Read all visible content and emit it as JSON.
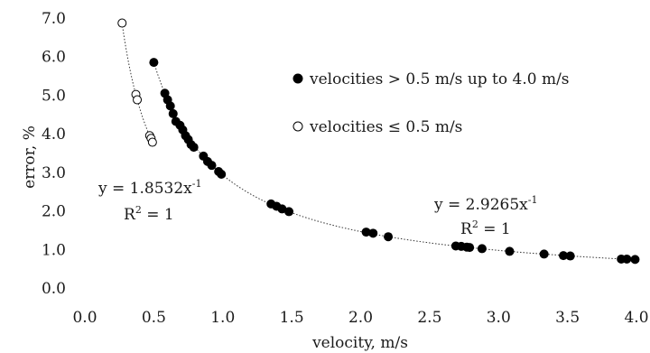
{
  "chart_data": {
    "type": "scatter",
    "xlabel": "velocity, m/s",
    "ylabel": "error, %",
    "xlim": [
      0,
      4.0
    ],
    "ylim": [
      0,
      7.0
    ],
    "xticks": [
      "0.0",
      "0.5",
      "1.0",
      "1.5",
      "2.0",
      "2.5",
      "3.0",
      "3.5",
      "4.0"
    ],
    "yticks": [
      "0.0",
      "1.0",
      "2.0",
      "3.0",
      "4.0",
      "5.0",
      "6.0",
      "7.0"
    ],
    "grid": false,
    "legend_position": "top-right",
    "series": [
      {
        "name": "velocities > 0.5 m/s up to 4.0 m/s",
        "marker": "filled-circle",
        "color": "#000000",
        "x": [
          0.5,
          0.58,
          0.6,
          0.62,
          0.64,
          0.66,
          0.69,
          0.71,
          0.73,
          0.75,
          0.77,
          0.79,
          0.86,
          0.89,
          0.92,
          0.97,
          0.99,
          1.35,
          1.39,
          1.43,
          1.48,
          2.04,
          2.09,
          2.2,
          2.69,
          2.73,
          2.77,
          2.79,
          2.88,
          3.08,
          3.33,
          3.47,
          3.52,
          3.89,
          3.93,
          3.99
        ],
        "y": [
          5.85,
          5.05,
          4.88,
          4.72,
          4.52,
          4.32,
          4.22,
          4.1,
          3.95,
          3.85,
          3.72,
          3.65,
          3.42,
          3.28,
          3.18,
          3.02,
          2.95,
          2.18,
          2.12,
          2.05,
          1.98,
          1.45,
          1.42,
          1.33,
          1.09,
          1.08,
          1.06,
          1.05,
          1.02,
          0.95,
          0.88,
          0.84,
          0.83,
          0.75,
          0.75,
          0.74
        ]
      },
      {
        "name": "velocities ≤ 0.5 m/s",
        "marker": "open-circle",
        "color": "#000000",
        "x": [
          0.27,
          0.37,
          0.38,
          0.47,
          0.48,
          0.49
        ],
        "y": [
          6.87,
          5.02,
          4.88,
          3.95,
          3.88,
          3.78
        ]
      }
    ],
    "trendlines": [
      {
        "series": "velocities ≤ 0.5 m/s",
        "coef": 1.8532,
        "exp": -1,
        "x_range": [
          0.25,
          0.5
        ]
      },
      {
        "series": "velocities > 0.5 m/s up to 4.0 m/s",
        "coef": 2.9265,
        "exp": -1,
        "x_range": [
          0.5,
          4.0
        ]
      }
    ],
    "annotations": [
      {
        "id": "low",
        "eq_base": "y = 1.8532x",
        "eq_sup": "-1",
        "r2_base": "R",
        "r2_sup": "2",
        "r2_tail": " = 1"
      },
      {
        "id": "high",
        "eq_base": "y = 2.9265x",
        "eq_sup": "-1",
        "r2_base": "R",
        "r2_sup": "2",
        "r2_tail": " = 1"
      }
    ]
  }
}
